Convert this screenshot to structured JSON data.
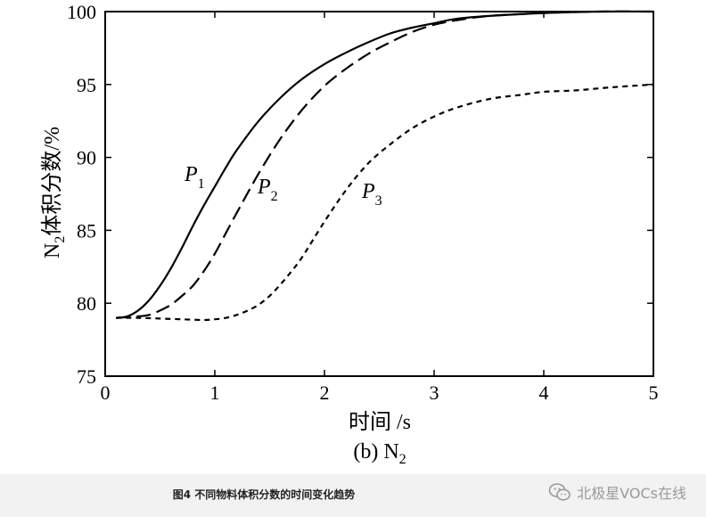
{
  "chart_data": {
    "type": "line",
    "subtitle": "(b) N",
    "subtitle_sub": "2",
    "xlabel": "时间 /s",
    "ylabel_main": "N",
    "ylabel_sub": "2",
    "ylabel_rest": "体积分数/%",
    "xlim": [
      0,
      5
    ],
    "ylim": [
      75,
      100
    ],
    "xticks": [
      0,
      1,
      2,
      3,
      4,
      5
    ],
    "yticks": [
      75,
      80,
      85,
      90,
      95,
      100
    ],
    "grid": false,
    "legend": "inline",
    "series": [
      {
        "name": "P",
        "name_sub": "1",
        "style": "solid",
        "x": [
          0.1,
          0.2,
          0.3,
          0.4,
          0.5,
          0.6,
          0.7,
          0.8,
          0.9,
          1.0,
          1.1,
          1.2,
          1.4,
          1.6,
          1.8,
          2.0,
          2.2,
          2.4,
          2.6,
          2.8,
          3.0,
          3.2,
          3.5,
          4.0,
          4.5,
          5.0
        ],
        "y": [
          79.0,
          79.1,
          79.5,
          80.2,
          81.2,
          82.4,
          83.8,
          85.3,
          86.7,
          88.0,
          89.3,
          90.5,
          92.5,
          94.1,
          95.4,
          96.4,
          97.2,
          97.9,
          98.5,
          98.9,
          99.2,
          99.5,
          99.7,
          99.9,
          100.0,
          100.0
        ]
      },
      {
        "name": "P",
        "name_sub": "2",
        "style": "dashed",
        "x": [
          0.1,
          0.3,
          0.4,
          0.5,
          0.6,
          0.7,
          0.8,
          0.9,
          1.0,
          1.1,
          1.2,
          1.4,
          1.6,
          1.8,
          2.0,
          2.2,
          2.4,
          2.6,
          2.8,
          3.0,
          3.2,
          3.5,
          4.0,
          4.5,
          5.0
        ],
        "y": [
          79.0,
          79.1,
          79.2,
          79.5,
          79.9,
          80.5,
          81.2,
          82.2,
          83.4,
          84.8,
          86.2,
          88.9,
          91.3,
          93.3,
          94.9,
          96.1,
          97.1,
          97.9,
          98.6,
          99.1,
          99.4,
          99.7,
          99.9,
          100.0,
          100.0
        ]
      },
      {
        "name": "P",
        "name_sub": "3",
        "style": "dotted",
        "x": [
          0.1,
          0.3,
          0.5,
          0.7,
          0.9,
          1.0,
          1.1,
          1.2,
          1.3,
          1.4,
          1.5,
          1.6,
          1.7,
          1.8,
          2.0,
          2.2,
          2.4,
          2.6,
          2.8,
          3.0,
          3.2,
          3.5,
          3.8,
          4.0,
          4.3,
          4.6,
          5.0
        ],
        "y": [
          79.0,
          79.0,
          78.95,
          78.9,
          78.85,
          78.9,
          79.0,
          79.2,
          79.5,
          79.9,
          80.5,
          81.3,
          82.2,
          83.2,
          85.6,
          87.8,
          89.6,
          90.9,
          92.0,
          92.8,
          93.4,
          94.0,
          94.3,
          94.5,
          94.6,
          94.8,
          95.0
        ]
      }
    ]
  },
  "caption": "图4    不同物料体积分数的时间变化趋势",
  "watermark": "北极星VOCs在线"
}
